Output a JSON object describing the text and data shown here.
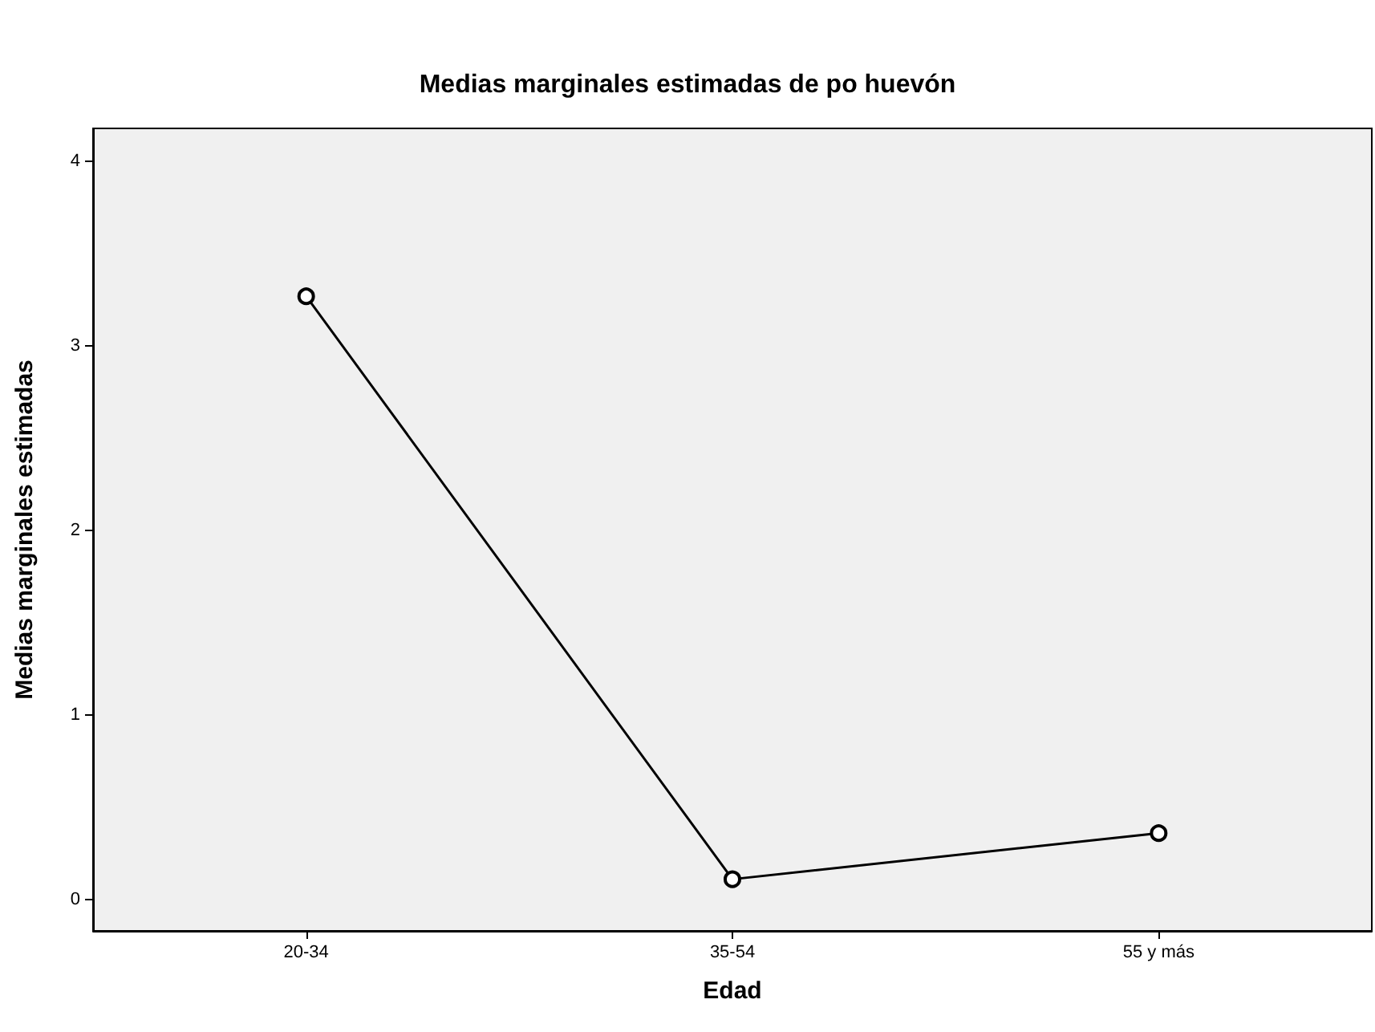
{
  "chart_data": {
    "type": "line",
    "title": "Medias marginales estimadas de po huevón",
    "xlabel": "Edad",
    "ylabel": "Medias marginales estimadas",
    "categories": [
      "20-34",
      "35-54",
      "55 y más"
    ],
    "series": [
      {
        "color": "#000000",
        "values": [
          3.27,
          0.11,
          0.36
        ]
      }
    ],
    "ylim": [
      -0.17,
      4.18
    ],
    "yticks": [
      0,
      1,
      2,
      3,
      4
    ],
    "grid": false,
    "marker": "circle",
    "line_style": "solid"
  }
}
